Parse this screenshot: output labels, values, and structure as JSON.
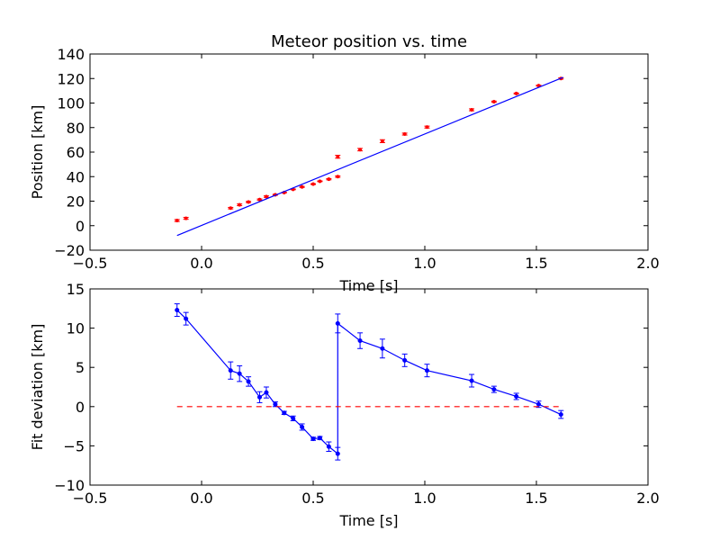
{
  "chart_data": [
    {
      "type": "scatter",
      "title": "Meteor position vs. time",
      "xlabel": "Time [s]",
      "ylabel": "Position [km]",
      "xlim": [
        -0.5,
        2.0
      ],
      "ylim": [
        -20,
        140
      ],
      "xticks": [
        "−0.5",
        "0.0",
        "0.5",
        "1.0",
        "1.5",
        "2.0"
      ],
      "yticks": [
        "−20",
        "0",
        "20",
        "40",
        "60",
        "80",
        "100",
        "120",
        "140"
      ],
      "grid": false,
      "series": [
        {
          "kind": "errorbar-points",
          "color": "#ff0000",
          "x": [
            -0.11,
            -0.07,
            0.13,
            0.17,
            0.21,
            0.26,
            0.29,
            0.33,
            0.37,
            0.41,
            0.45,
            0.5,
            0.53,
            0.57,
            0.61,
            0.61,
            0.71,
            0.81,
            0.91,
            1.01,
            1.21,
            1.31,
            1.41,
            1.51,
            1.61
          ],
          "y": [
            4.2,
            6.0,
            14.3,
            17.0,
            19.3,
            21.3,
            23.7,
            25.2,
            27.0,
            29.6,
            31.6,
            33.9,
            36.2,
            37.9,
            40.0,
            56.2,
            62.0,
            68.9,
            74.7,
            80.4,
            94.5,
            101.1,
            107.8,
            114.2,
            120.0
          ],
          "yerr": [
            0.8,
            0.8,
            0.6,
            0.7,
            0.5,
            0.5,
            0.6,
            0.4,
            0.3,
            0.3,
            0.4,
            0.3,
            0.3,
            0.5,
            0.6,
            1.2,
            1.0,
            1.2,
            0.8,
            0.8,
            0.8,
            0.5,
            0.4,
            0.4,
            0.5
          ]
        },
        {
          "kind": "fit-line",
          "color": "#0000ff",
          "x": [
            -0.11,
            1.62
          ],
          "y": [
            -8.0,
            121.0
          ]
        }
      ]
    },
    {
      "type": "line",
      "xlabel": "Time [s]",
      "ylabel": "Fit deviation [km]",
      "xlim": [
        -0.5,
        2.0
      ],
      "ylim": [
        -10,
        15
      ],
      "xticks": [
        "−0.5",
        "0.0",
        "0.5",
        "1.0",
        "1.5",
        "2.0"
      ],
      "yticks": [
        "−10",
        "−5",
        "0",
        "5",
        "10",
        "15"
      ],
      "grid": false,
      "series": [
        {
          "kind": "errorbar-line",
          "color": "#0000ff",
          "x": [
            -0.11,
            -0.07,
            0.13,
            0.17,
            0.21,
            0.26,
            0.29,
            0.33,
            0.37,
            0.41,
            0.45,
            0.5,
            0.53,
            0.57,
            0.61,
            0.61,
            0.71,
            0.81,
            0.91,
            1.01,
            1.21,
            1.31,
            1.41,
            1.51,
            1.61
          ],
          "y": [
            12.3,
            11.2,
            4.6,
            4.2,
            3.2,
            1.2,
            1.8,
            0.3,
            -0.8,
            -1.5,
            -2.6,
            -4.1,
            -4.0,
            -5.1,
            -6.0,
            10.6,
            8.4,
            7.4,
            5.9,
            4.6,
            3.3,
            2.2,
            1.3,
            0.3,
            -1.0
          ],
          "yerr": [
            0.8,
            0.8,
            1.1,
            1.0,
            0.6,
            0.7,
            0.7,
            0.3,
            0.2,
            0.3,
            0.4,
            0.2,
            0.2,
            0.6,
            0.8,
            1.2,
            1.0,
            1.2,
            0.8,
            0.8,
            0.8,
            0.4,
            0.4,
            0.4,
            0.5
          ]
        },
        {
          "kind": "reference-line",
          "color": "#ff0000",
          "dashed": true,
          "x": [
            -0.11,
            1.62
          ],
          "y": [
            0,
            0
          ]
        }
      ]
    }
  ]
}
